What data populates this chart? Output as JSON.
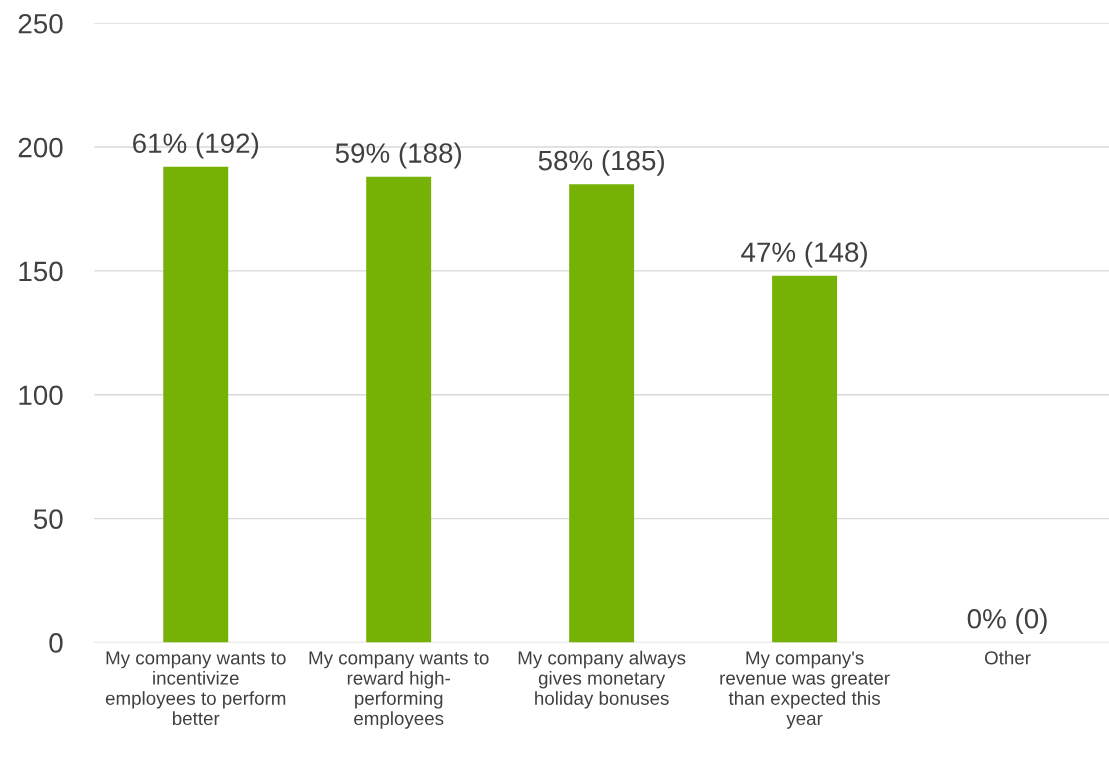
{
  "chart_data": {
    "type": "bar",
    "categories": [
      "My company wants to\nincentivize\nemployees to perform\nbetter",
      "My company wants to\nreward high-\nperforming\nemployees",
      "My company always\ngives monetary\nholiday bonuses",
      "My company's\nrevenue was greater\nthan expected this\nyear",
      "Other"
    ],
    "values": [
      192,
      188,
      185,
      148,
      0
    ],
    "value_labels": [
      "61% (192)",
      "59% (188)",
      "58% (185)",
      "47% (148)",
      "0% (0)"
    ],
    "color": "#76b106",
    "ylim": [
      0,
      250
    ],
    "yticks": [
      0,
      50,
      100,
      150,
      200,
      250
    ],
    "grid": "y"
  }
}
